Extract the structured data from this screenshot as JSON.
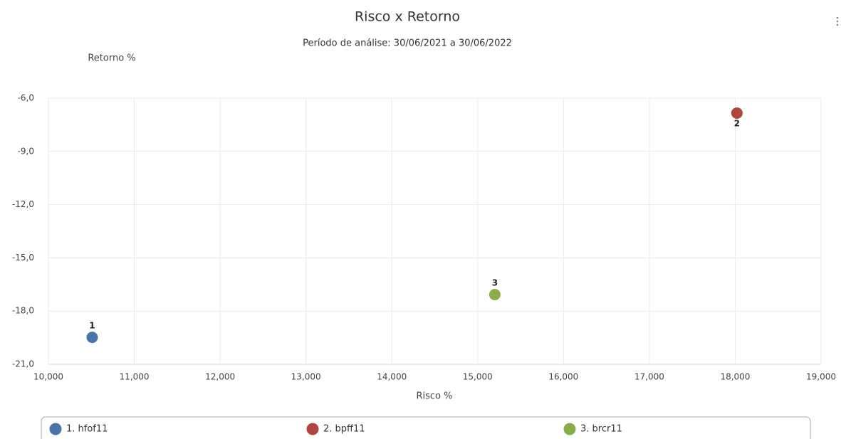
{
  "chart_data": {
    "type": "scatter",
    "title": "Risco x Retorno",
    "subtitle": "Período de análise: 30/06/2021 a 30/06/2022",
    "x_label": "Risco %",
    "y_label": "Retorno %",
    "xlim": [
      10,
      19
    ],
    "xticks": [
      {
        "value": 10,
        "label": "10,000"
      },
      {
        "value": 11,
        "label": "11,000"
      },
      {
        "value": 12,
        "label": "12,000"
      },
      {
        "value": 13,
        "label": "13,000"
      },
      {
        "value": 14,
        "label": "14,000"
      },
      {
        "value": 15,
        "label": "15,000"
      },
      {
        "value": 16,
        "label": "16,000"
      },
      {
        "value": 17,
        "label": "17,000"
      },
      {
        "value": 18,
        "label": "18,000"
      },
      {
        "value": 19,
        "label": "19,000"
      }
    ],
    "ylim": [
      -21,
      -6
    ],
    "yticks": [
      {
        "value": -6,
        "label": "-6,0"
      },
      {
        "value": -9,
        "label": "-9,0"
      },
      {
        "value": -12,
        "label": "-12,0"
      },
      {
        "value": -15,
        "label": "-15,0"
      },
      {
        "value": -18,
        "label": "-18,0"
      },
      {
        "value": -21,
        "label": "-21,0"
      }
    ],
    "grid": true,
    "series": [
      {
        "name": "1. hfof11",
        "color": "#4a74a8",
        "x": [
          10.51
        ],
        "values": [
          -19.48
        ],
        "labels": [
          "1"
        ]
      },
      {
        "name": "2. bpff11",
        "color": "#b04440",
        "x": [
          18.02
        ],
        "values": [
          -6.84
        ],
        "labels": [
          "2"
        ]
      },
      {
        "name": "3. brcr11",
        "color": "#8aac4a",
        "x": [
          15.2
        ],
        "values": [
          -17.07
        ],
        "labels": [
          "3"
        ]
      }
    ]
  }
}
